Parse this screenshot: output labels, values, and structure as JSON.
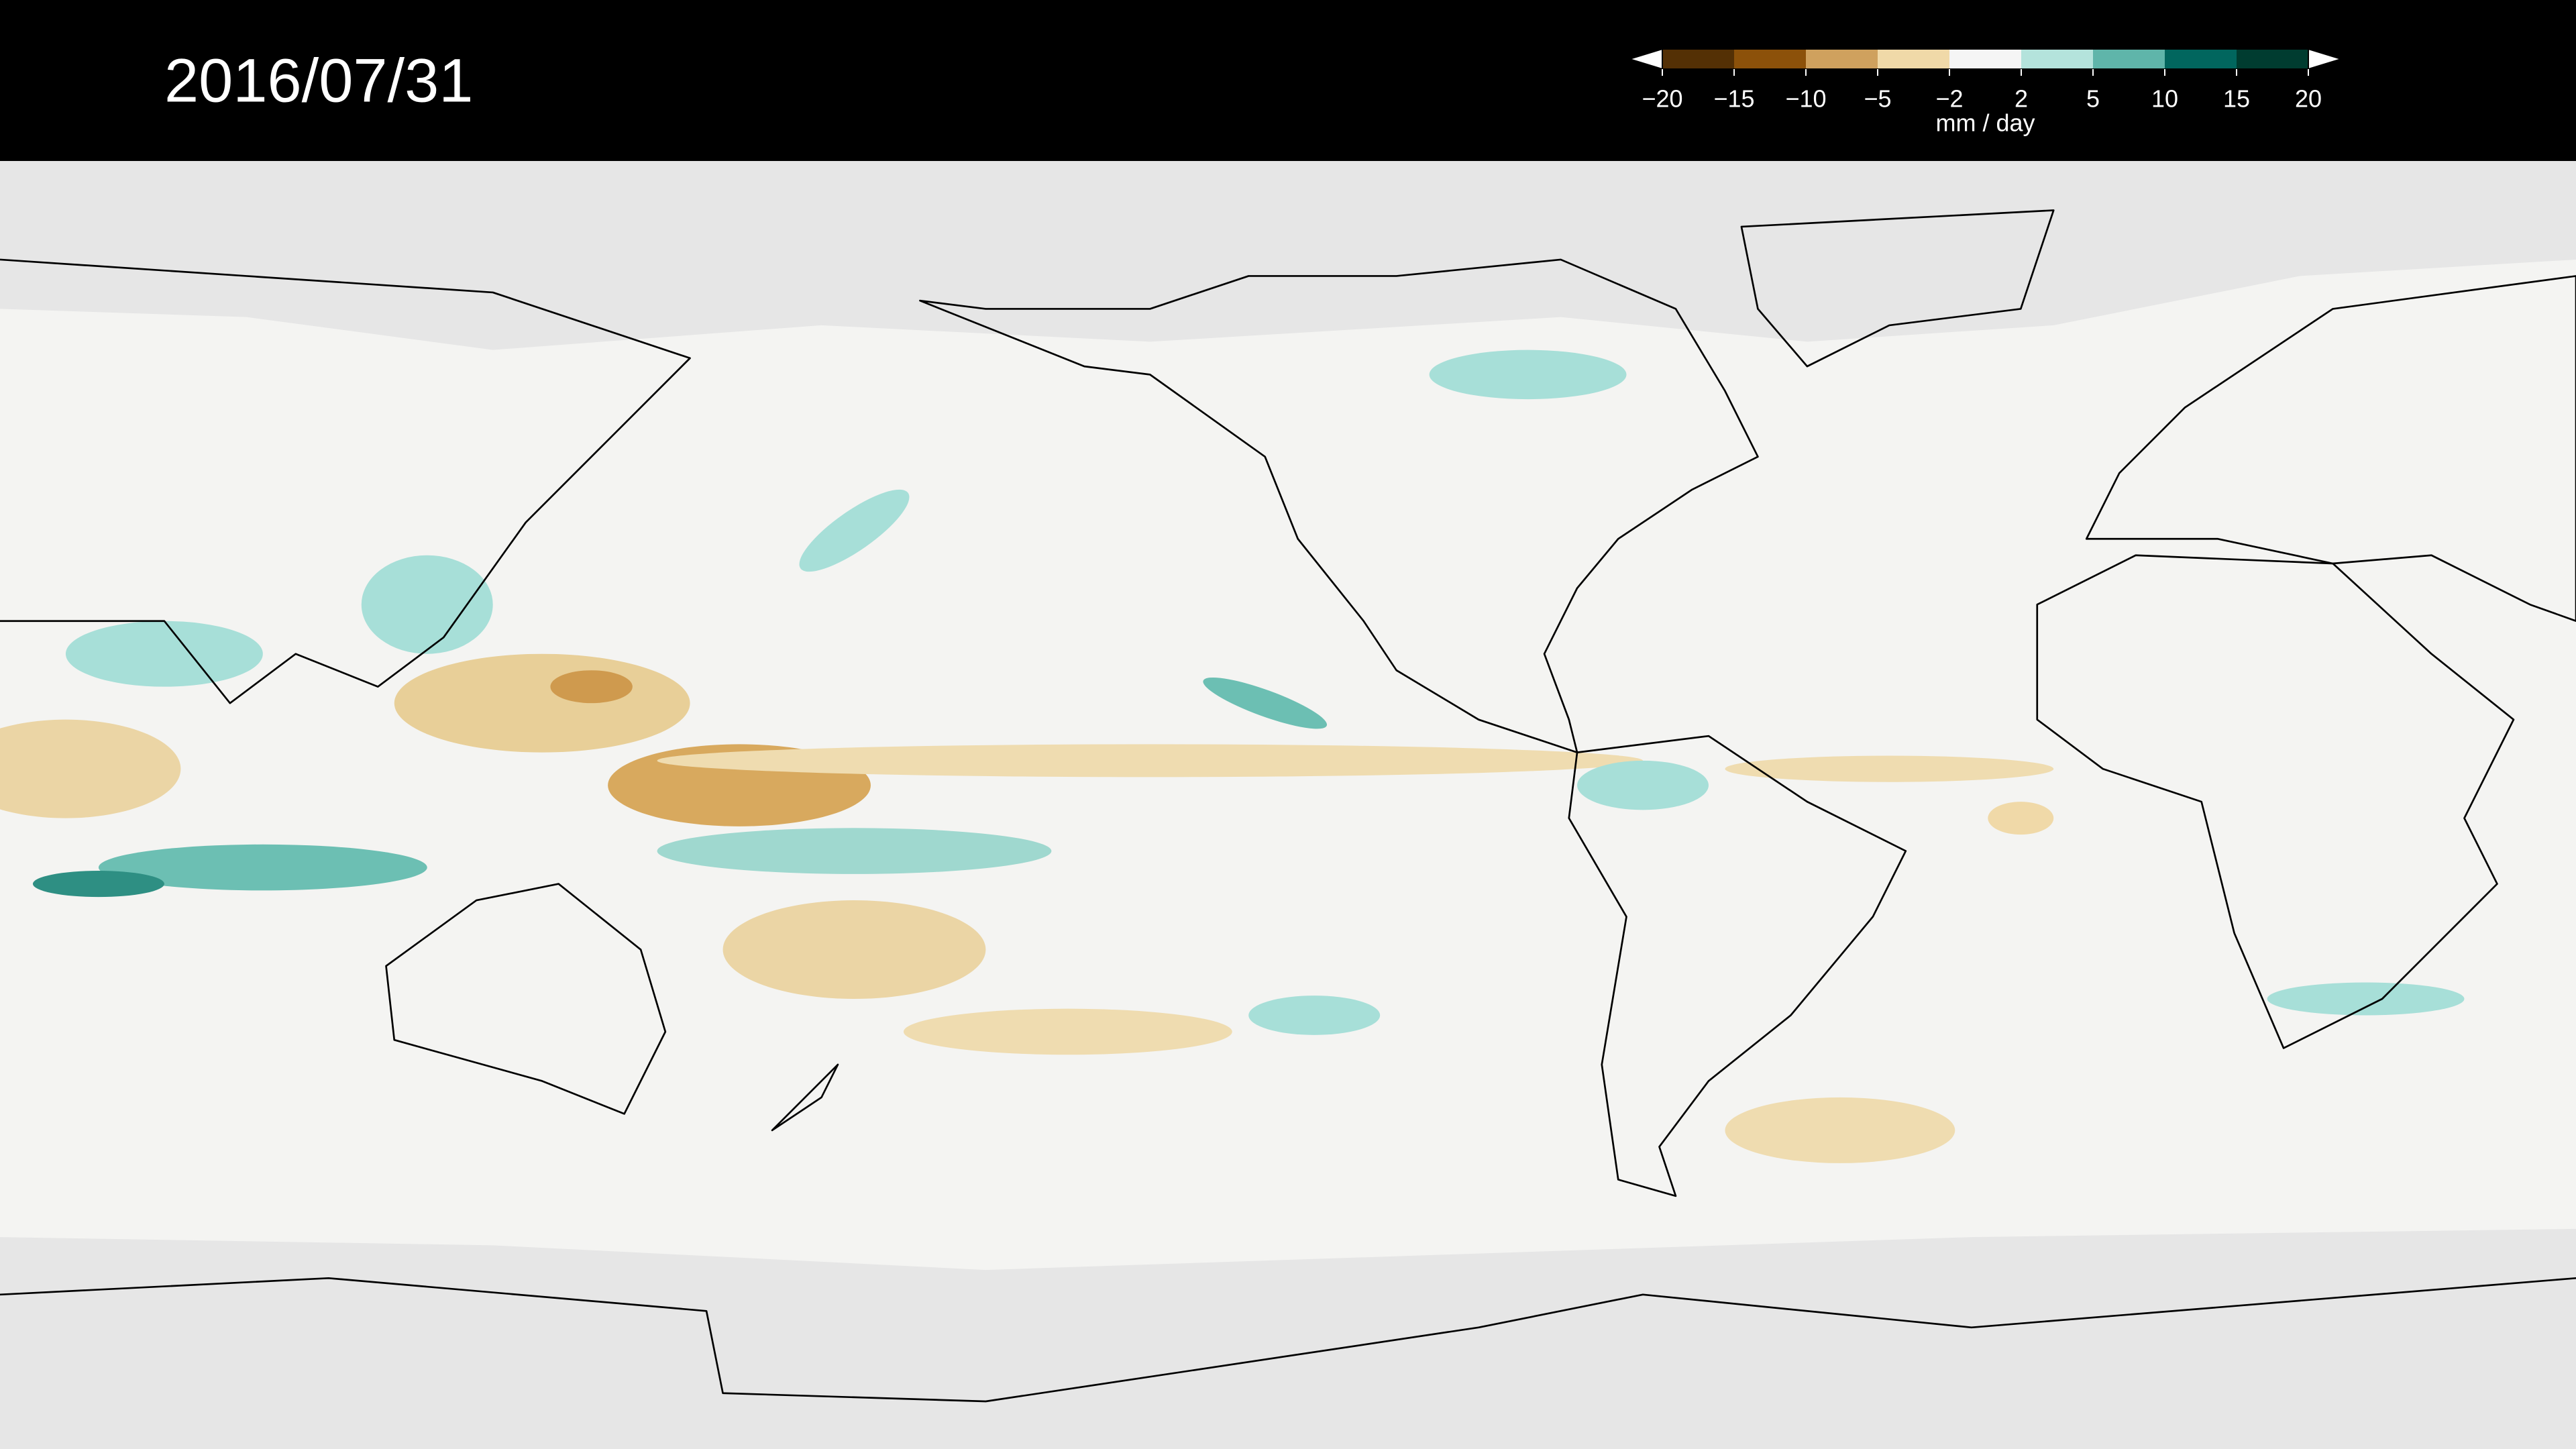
{
  "header": {
    "date": "2016/07/31"
  },
  "colorbar": {
    "ticks": [
      -20,
      -15,
      -10,
      -5,
      -2,
      2,
      5,
      10,
      15,
      20
    ],
    "colors": [
      "#543005",
      "#8c510a",
      "#cfa15e",
      "#f0d9a8",
      "#f5f5f5",
      "#b4e3dc",
      "#5fb5aa",
      "#01665e",
      "#003c30"
    ],
    "label": "mm / day"
  }
}
